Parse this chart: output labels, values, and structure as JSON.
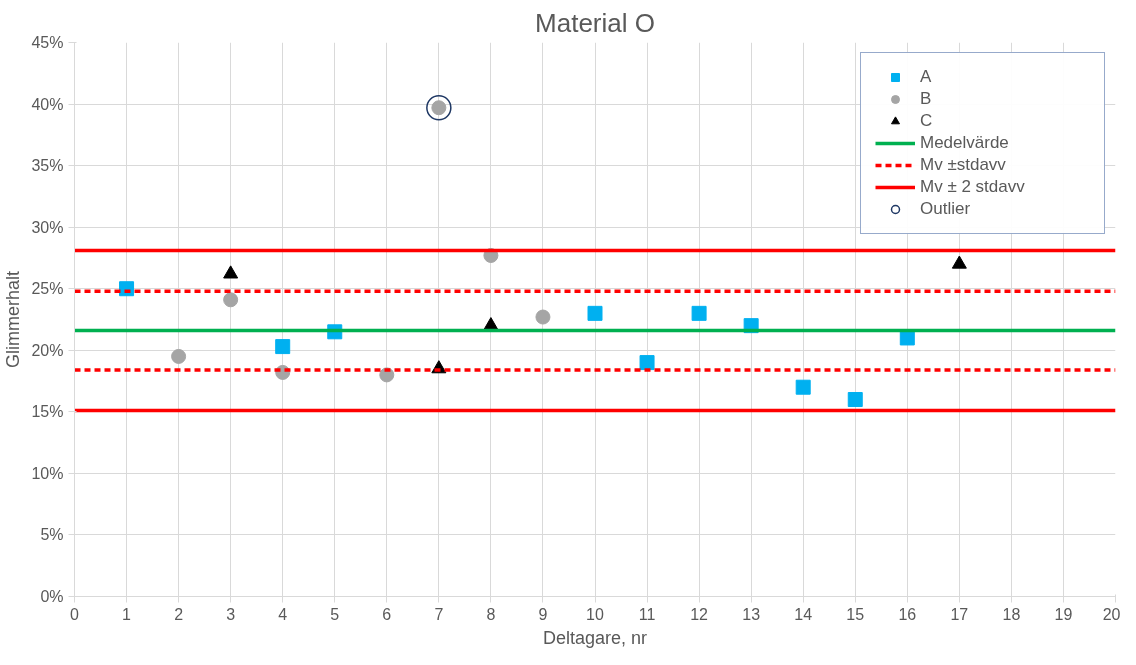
{
  "chart_data": {
    "type": "scatter",
    "title": "Material O",
    "xlabel": "Deltagare, nr",
    "ylabel": "Glimmerhalt",
    "xlim": [
      0,
      20
    ],
    "xticks": [
      0,
      1,
      2,
      3,
      4,
      5,
      6,
      7,
      8,
      9,
      10,
      11,
      12,
      13,
      14,
      15,
      16,
      17,
      18,
      19,
      20
    ],
    "ylim": [
      0,
      45
    ],
    "yticks": [
      {
        "value": 0,
        "label": "0%"
      },
      {
        "value": 5,
        "label": "5%"
      },
      {
        "value": 10,
        "label": "10%"
      },
      {
        "value": 15,
        "label": "15%"
      },
      {
        "value": 20,
        "label": "20%"
      },
      {
        "value": 25,
        "label": "25%"
      },
      {
        "value": 30,
        "label": "30%"
      },
      {
        "value": 35,
        "label": "35%"
      },
      {
        "value": 40,
        "label": "40%"
      },
      {
        "value": 45,
        "label": "45%"
      }
    ],
    "grid": true,
    "legend": "top right",
    "series": [
      {
        "name": "A",
        "marker": "square",
        "color": "#00b0f0",
        "x": [
          1,
          4,
          5,
          10,
          11,
          12,
          13,
          14,
          15,
          16
        ],
        "values": [
          25,
          20.3,
          21.5,
          23,
          19,
          23,
          22,
          17,
          16,
          21
        ]
      },
      {
        "name": "B",
        "marker": "circle",
        "color": "#a5a5a5",
        "x": [
          2,
          3,
          4,
          6,
          7,
          8,
          9
        ],
        "values": [
          19.5,
          24.1,
          18.2,
          18,
          39.7,
          27.7,
          22.7
        ]
      },
      {
        "name": "C",
        "marker": "triangle",
        "color": "#000000",
        "x": [
          3,
          7,
          8,
          17
        ],
        "values": [
          26.2,
          18.5,
          22,
          27
        ]
      },
      {
        "name": "Medelvärde",
        "type": "line",
        "line_style": "solid",
        "color": "#00b050",
        "x": [
          0,
          20
        ],
        "values": [
          21.6,
          21.6
        ]
      },
      {
        "name": "Mv ±stdavv",
        "type": "line",
        "line_style": "dashed",
        "color": "#ff0000",
        "x": [
          0,
          20
        ],
        "values": [
          24.8,
          24.8
        ]
      },
      {
        "type": "line",
        "line_style": "dashed",
        "color": "#ff0000",
        "x": [
          0,
          20
        ],
        "values": [
          18.4,
          18.4
        ]
      },
      {
        "name": "Mv ± 2 stdavv",
        "type": "line",
        "line_style": "solid",
        "color": "#ff0000",
        "x": [
          0,
          20
        ],
        "values": [
          28.1,
          28.1
        ]
      },
      {
        "type": "line",
        "line_style": "solid",
        "color": "#ff0000",
        "x": [
          0,
          20
        ],
        "values": [
          15.1,
          15.1
        ]
      },
      {
        "name": "Outlier",
        "marker": "hollow_circle",
        "color": "#1f3864",
        "x": [
          7
        ],
        "values": [
          39.7
        ]
      }
    ]
  }
}
